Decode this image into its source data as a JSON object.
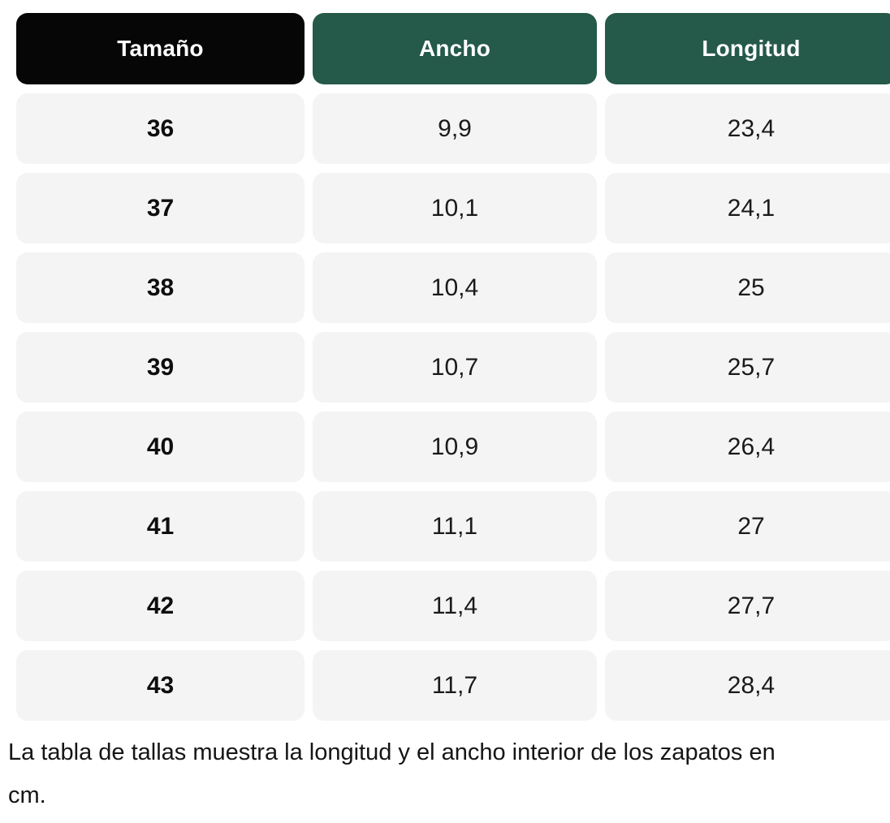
{
  "chart_data": {
    "type": "table",
    "title": "",
    "columns": [
      "Tamaño",
      "Ancho",
      "Longitud"
    ],
    "rows": [
      [
        "36",
        "9,9",
        "23,4"
      ],
      [
        "37",
        "10,1",
        "24,1"
      ],
      [
        "38",
        "10,4",
        "25"
      ],
      [
        "39",
        "10,7",
        "25,7"
      ],
      [
        "40",
        "10,9",
        "26,4"
      ],
      [
        "41",
        "11,1",
        "27"
      ],
      [
        "42",
        "11,4",
        "27,7"
      ],
      [
        "43",
        "11,7",
        "28,4"
      ]
    ],
    "note": "La tabla de tallas muestra la longitud y el ancho interior de los zapatos en cm.",
    "units": "cm",
    "layout_hints": {
      "header_styles": [
        "black",
        "green",
        "green"
      ],
      "third_column_clipped_at_right_edge": true
    }
  },
  "note": {
    "lines": [
      "La tabla de tallas muestra la longitud y el ancho interior de los zapatos en",
      "cm."
    ]
  },
  "colors": {
    "header_primary_bg": "#060606",
    "header_accent_bg": "#25594a",
    "header_text": "#ffffff",
    "cell_bg": "#f4f4f4",
    "cell_text": "#1a1a1a"
  }
}
